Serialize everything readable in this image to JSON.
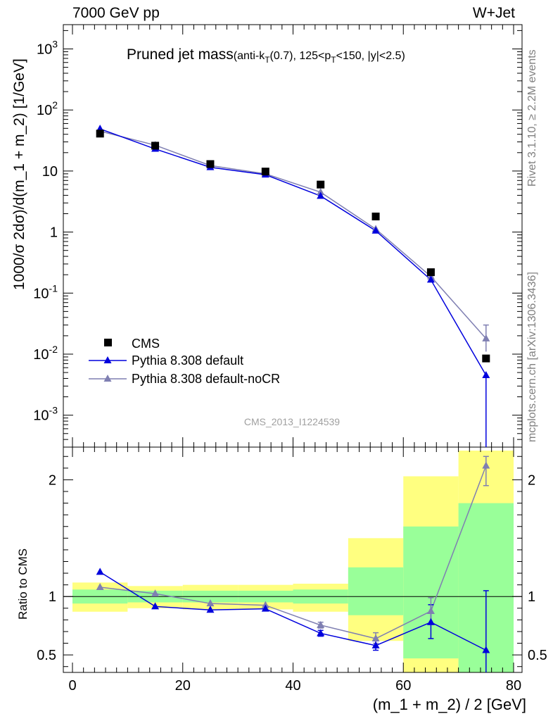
{
  "header": {
    "left": "7000 GeV pp",
    "right": "W+Jet"
  },
  "side_labels": {
    "rivet": "Rivet 3.1.10, ≥ 2.2M events",
    "mcplots": "mcplots.cern.ch [arXiv:1306.3436]"
  },
  "analysis_id": "CMS_2013_I1224539",
  "title": {
    "main": "Pruned jet mass",
    "sub_pre": "(anti-k",
    "sub_sub1": "T",
    "sub_mid1": "(0.7), 125<p",
    "sub_sub2": "T",
    "sub_post": "<150, |y|<2.5)"
  },
  "colors": {
    "cms": "#000000",
    "default": "#0000dd",
    "noCR": "#7f7fb2",
    "band_outer": "#ffff80",
    "band_inner": "#99ff99"
  },
  "chart_data": [
    {
      "type": "scatter",
      "panel": "main",
      "yscale": "log",
      "ylabel": "1000/σ 2dσ)/d(m_1 + m_2) [1/GeV]",
      "ylim": [
        0.0003,
        2500
      ],
      "xlim": [
        -2,
        82
      ],
      "ytick_labels": [
        "10^-3",
        "10^-2",
        "10^-1",
        "1",
        "10",
        "10^2",
        "10^3"
      ],
      "x": [
        5,
        15,
        25,
        35,
        45,
        55,
        65,
        75
      ],
      "series": [
        {
          "name": "CMS",
          "marker": "square",
          "values": [
            41.0,
            26.0,
            13.0,
            9.8,
            6.0,
            1.8,
            0.22,
            0.0085
          ]
        },
        {
          "name": "Pythia 8.308 default",
          "marker": "triangle",
          "values": [
            49.0,
            23.0,
            11.5,
            8.7,
            3.9,
            1.05,
            0.165,
            0.0045
          ]
        },
        {
          "name": "Pythia 8.308 default-noCR",
          "marker": "triangle",
          "values": [
            45.0,
            26.5,
            12.3,
            9.0,
            4.5,
            1.12,
            0.187,
            0.018
          ]
        }
      ]
    },
    {
      "type": "line",
      "panel": "ratio",
      "ylabel": "Ratio to CMS",
      "xlabel": "(m_1 + m_2) / 2 [GeV]",
      "ylim": [
        0.35,
        2.28
      ],
      "xlim": [
        -2,
        82
      ],
      "xtick_labels": [
        "0",
        "20",
        "40",
        "60",
        "80"
      ],
      "ytick_labels": [
        "0.5",
        "1",
        "2"
      ],
      "bins": [
        [
          0,
          10
        ],
        [
          10,
          20
        ],
        [
          20,
          30
        ],
        [
          30,
          40
        ],
        [
          40,
          50
        ],
        [
          50,
          60
        ],
        [
          60,
          70
        ],
        [
          70,
          80
        ]
      ],
      "band_outer": [
        [
          0.87,
          1.12
        ],
        [
          0.9,
          1.09
        ],
        [
          0.89,
          1.1
        ],
        [
          0.89,
          1.1
        ],
        [
          0.87,
          1.11
        ],
        [
          0.62,
          1.5
        ],
        [
          0.35,
          2.03
        ],
        [
          0.35,
          2.25
        ]
      ],
      "band_inner": [
        [
          0.94,
          1.06
        ],
        [
          0.95,
          1.05
        ],
        [
          0.95,
          1.05
        ],
        [
          0.95,
          1.05
        ],
        [
          0.94,
          1.06
        ],
        [
          0.84,
          1.25
        ],
        [
          0.47,
          1.6
        ],
        [
          0.35,
          1.8
        ]
      ],
      "x": [
        5,
        15,
        25,
        35,
        45,
        55,
        65,
        75
      ],
      "series": [
        {
          "name": "Pythia 8.308 default",
          "values": [
            1.21,
            0.915,
            0.885,
            0.895,
            0.685,
            0.58,
            0.78,
            0.54
          ]
        },
        {
          "name": "Pythia 8.308 default-noCR",
          "values": [
            1.08,
            1.025,
            0.94,
            0.925,
            0.755,
            0.64,
            0.875,
            2.12
          ]
        }
      ]
    }
  ]
}
